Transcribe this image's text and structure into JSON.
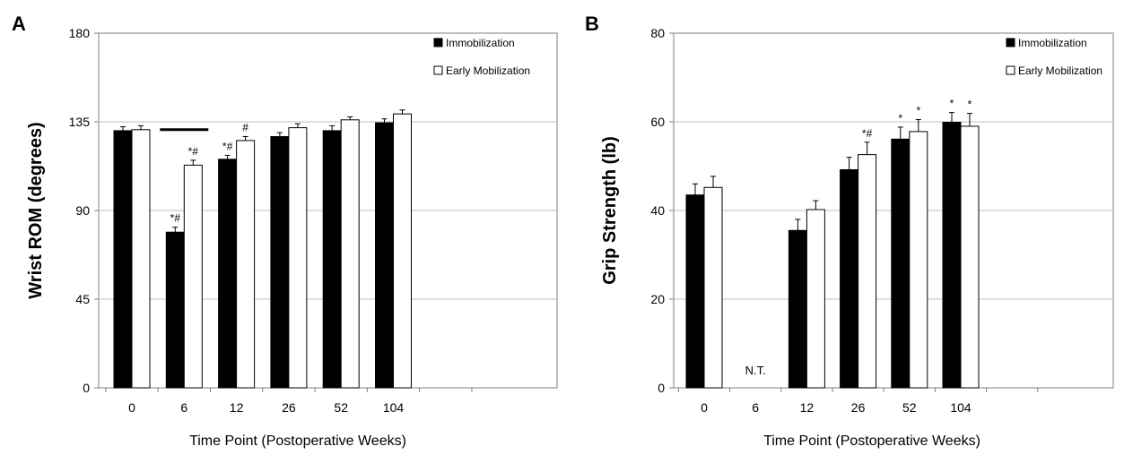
{
  "chart_data": [
    {
      "type": "bar",
      "panel_label": "A",
      "xlabel": "Time Point (Postoperative Weeks)",
      "ylabel": "Wrist ROM (degrees)",
      "ylim": [
        0,
        180
      ],
      "yticks": [
        "0",
        "45",
        "90",
        "135",
        "180"
      ],
      "grid": true,
      "legend_position": "top-right",
      "categories": [
        "0",
        "6",
        "12",
        "26",
        "52",
        "104"
      ],
      "series": [
        {
          "name": "Immobilization",
          "color": "#000000",
          "values": [
            130.5,
            79,
            116,
            127.5,
            130.5,
            134.5
          ],
          "errors": [
            2,
            2.5,
            2,
            2,
            2.5,
            2
          ]
        },
        {
          "name": "Early Mobilization",
          "color": "#ffffff",
          "values": [
            131,
            113,
            125.5,
            132,
            136,
            139
          ],
          "errors": [
            2,
            2.5,
            2,
            2,
            1.5,
            2
          ]
        }
      ],
      "annotations": [
        {
          "category": "6",
          "series": 0,
          "text": "*#"
        },
        {
          "category": "6",
          "series": 1,
          "text": "*#"
        },
        {
          "category": "12",
          "series": 0,
          "text": "*#"
        },
        {
          "category": "12",
          "series": 1,
          "text": "#"
        }
      ],
      "bracket": {
        "category": "6",
        "value": 131
      }
    },
    {
      "type": "bar",
      "panel_label": "B",
      "xlabel": "Time Point (Postoperative Weeks)",
      "ylabel": "Grip Strength (lb)",
      "ylim": [
        0,
        80
      ],
      "yticks": [
        "0",
        "20",
        "40",
        "60",
        "80"
      ],
      "grid": true,
      "legend_position": "top-right",
      "categories": [
        "0",
        "6",
        "12",
        "26",
        "52",
        "104"
      ],
      "series": [
        {
          "name": "Immobilization",
          "color": "#000000",
          "values": [
            43.5,
            null,
            35.5,
            49.2,
            56.1,
            59.9
          ],
          "errors": [
            2.5,
            null,
            2.5,
            2.8,
            2.7,
            2.2
          ]
        },
        {
          "name": "Early Mobilization",
          "color": "#ffffff",
          "values": [
            45.2,
            null,
            40.2,
            52.6,
            57.8,
            59
          ],
          "errors": [
            2.5,
            null,
            2,
            2.8,
            2.7,
            2.9
          ]
        }
      ],
      "annotations": [
        {
          "category": "26",
          "series": 1,
          "text": "*#"
        },
        {
          "category": "52",
          "series": 0,
          "text": "*"
        },
        {
          "category": "52",
          "series": 1,
          "text": "*"
        },
        {
          "category": "104",
          "series": 0,
          "text": "*"
        },
        {
          "category": "104",
          "series": 1,
          "text": "*"
        }
      ],
      "category_notes": [
        {
          "category": "6",
          "text": "N.T."
        }
      ]
    }
  ]
}
